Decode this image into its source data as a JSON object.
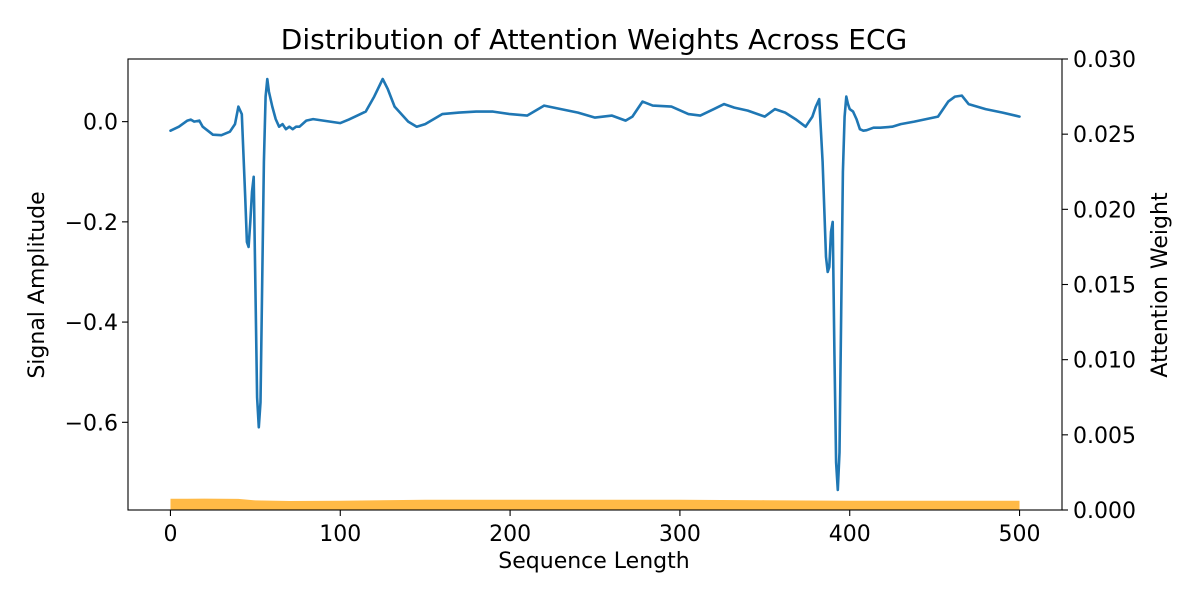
{
  "chart_data": {
    "type": "line",
    "title": "Distribution of Attention Weights Across ECG",
    "xlabel": "Sequence Length",
    "ylabel_left": "Signal Amplitude",
    "ylabel_right": "Attention Weight",
    "xlim": [
      -25,
      525
    ],
    "ylim_left": [
      -0.775,
      0.125
    ],
    "ylim_right": [
      0.0,
      0.03
    ],
    "x_ticks": [
      0,
      100,
      200,
      300,
      400,
      500
    ],
    "x_tick_labels": [
      "0",
      "100",
      "200",
      "300",
      "400",
      "500"
    ],
    "y_left_ticks": [
      0.0,
      -0.2,
      -0.4,
      -0.6
    ],
    "y_left_tick_labels": [
      "0.0",
      "−0.2",
      "−0.4",
      "−0.6"
    ],
    "y_right_ticks": [
      0.0,
      0.005,
      0.01,
      0.015,
      0.02,
      0.025,
      0.03
    ],
    "y_right_tick_labels": [
      "0.000",
      "0.005",
      "0.010",
      "0.015",
      "0.020",
      "0.025",
      "0.030"
    ],
    "grid": false,
    "series": [
      {
        "axis": "left",
        "kind": "line",
        "color": "#1f77b4",
        "points": [
          [
            0,
            -0.018
          ],
          [
            5,
            -0.01
          ],
          [
            10,
            0.002
          ],
          [
            12,
            0.004
          ],
          [
            14,
            0.0
          ],
          [
            17,
            0.002
          ],
          [
            19,
            -0.01
          ],
          [
            22,
            -0.018
          ],
          [
            25,
            -0.026
          ],
          [
            30,
            -0.027
          ],
          [
            35,
            -0.02
          ],
          [
            38,
            -0.005
          ],
          [
            40,
            0.03
          ],
          [
            42,
            0.015
          ],
          [
            44,
            -0.15
          ],
          [
            45,
            -0.24
          ],
          [
            46,
            -0.25
          ],
          [
            47,
            -0.2
          ],
          [
            48,
            -0.14
          ],
          [
            49,
            -0.11
          ],
          [
            50,
            -0.33
          ],
          [
            51,
            -0.55
          ],
          [
            52,
            -0.61
          ],
          [
            53,
            -0.56
          ],
          [
            54,
            -0.32
          ],
          [
            55,
            -0.08
          ],
          [
            56,
            0.05
          ],
          [
            57,
            0.085
          ],
          [
            58,
            0.06
          ],
          [
            60,
            0.03
          ],
          [
            62,
            0.005
          ],
          [
            64,
            -0.01
          ],
          [
            66,
            -0.005
          ],
          [
            68,
            -0.015
          ],
          [
            70,
            -0.01
          ],
          [
            72,
            -0.015
          ],
          [
            74,
            -0.01
          ],
          [
            76,
            -0.01
          ],
          [
            80,
            0.002
          ],
          [
            84,
            0.005
          ],
          [
            90,
            0.002
          ],
          [
            100,
            -0.003
          ],
          [
            105,
            0.004
          ],
          [
            110,
            0.012
          ],
          [
            115,
            0.02
          ],
          [
            120,
            0.05
          ],
          [
            125,
            0.085
          ],
          [
            128,
            0.065
          ],
          [
            132,
            0.03
          ],
          [
            136,
            0.015
          ],
          [
            140,
            0.0
          ],
          [
            145,
            -0.01
          ],
          [
            150,
            -0.005
          ],
          [
            160,
            0.015
          ],
          [
            170,
            0.018
          ],
          [
            180,
            0.02
          ],
          [
            190,
            0.02
          ],
          [
            200,
            0.015
          ],
          [
            210,
            0.012
          ],
          [
            220,
            0.032
          ],
          [
            230,
            0.025
          ],
          [
            240,
            0.018
          ],
          [
            250,
            0.008
          ],
          [
            260,
            0.012
          ],
          [
            268,
            0.002
          ],
          [
            272,
            0.01
          ],
          [
            278,
            0.04
          ],
          [
            284,
            0.032
          ],
          [
            295,
            0.03
          ],
          [
            305,
            0.015
          ],
          [
            312,
            0.012
          ],
          [
            320,
            0.025
          ],
          [
            326,
            0.035
          ],
          [
            332,
            0.028
          ],
          [
            340,
            0.022
          ],
          [
            350,
            0.01
          ],
          [
            356,
            0.025
          ],
          [
            362,
            0.018
          ],
          [
            368,
            0.005
          ],
          [
            374,
            -0.01
          ],
          [
            378,
            0.01
          ],
          [
            380,
            0.03
          ],
          [
            382,
            0.045
          ],
          [
            384,
            -0.08
          ],
          [
            386,
            -0.27
          ],
          [
            387,
            -0.3
          ],
          [
            388,
            -0.29
          ],
          [
            389,
            -0.22
          ],
          [
            390,
            -0.2
          ],
          [
            391,
            -0.46
          ],
          [
            392,
            -0.68
          ],
          [
            393,
            -0.735
          ],
          [
            394,
            -0.66
          ],
          [
            395,
            -0.38
          ],
          [
            396,
            -0.1
          ],
          [
            397,
            0.01
          ],
          [
            398,
            0.05
          ],
          [
            399,
            0.035
          ],
          [
            400,
            0.025
          ],
          [
            402,
            0.02
          ],
          [
            404,
            0.005
          ],
          [
            406,
            -0.015
          ],
          [
            408,
            -0.018
          ],
          [
            410,
            -0.017
          ],
          [
            414,
            -0.012
          ],
          [
            418,
            -0.012
          ],
          [
            425,
            -0.01
          ],
          [
            430,
            -0.005
          ],
          [
            438,
            0.0
          ],
          [
            445,
            0.005
          ],
          [
            452,
            0.01
          ],
          [
            458,
            0.04
          ],
          [
            462,
            0.05
          ],
          [
            466,
            0.052
          ],
          [
            470,
            0.035
          ],
          [
            480,
            0.025
          ],
          [
            490,
            0.018
          ],
          [
            500,
            0.01
          ]
        ]
      },
      {
        "axis": "right",
        "kind": "area",
        "color": "#ffb232",
        "points": [
          [
            0,
            0.00075
          ],
          [
            10,
            0.00075
          ],
          [
            20,
            0.00076
          ],
          [
            40,
            0.00074
          ],
          [
            50,
            0.00064
          ],
          [
            70,
            0.0006
          ],
          [
            100,
            0.00062
          ],
          [
            150,
            0.00068
          ],
          [
            200,
            0.00068
          ],
          [
            250,
            0.00068
          ],
          [
            300,
            0.00068
          ],
          [
            350,
            0.00065
          ],
          [
            400,
            0.00062
          ],
          [
            450,
            0.00062
          ],
          [
            500,
            0.00061
          ]
        ]
      }
    ]
  }
}
